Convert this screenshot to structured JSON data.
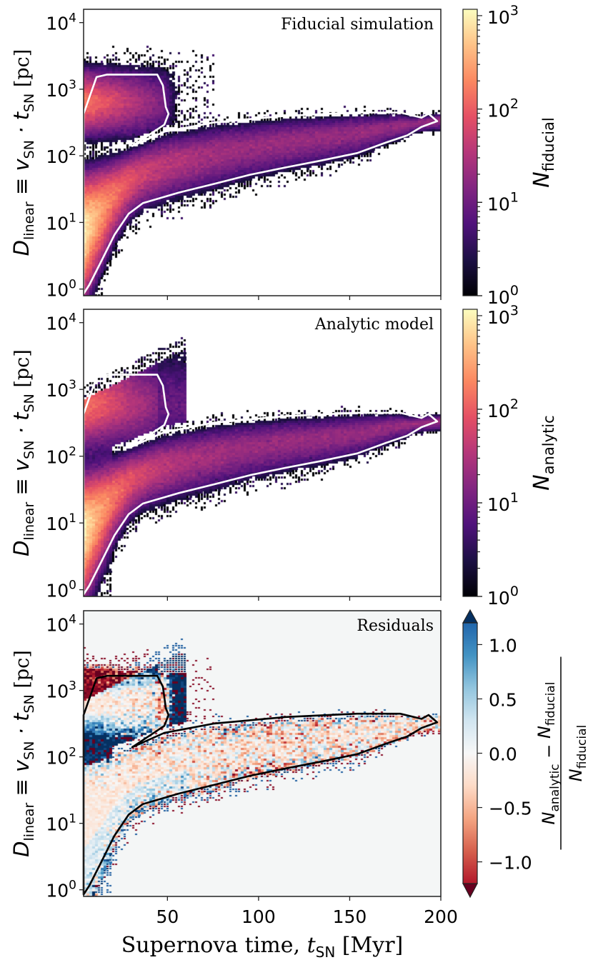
{
  "chart_data": [
    {
      "type": "heatmap",
      "title": "Fiducial simulation",
      "xscale": "linear",
      "xlim": [
        4,
        200
      ],
      "xticks": [
        50,
        100,
        150,
        200
      ],
      "yscale": "log",
      "ylim": [
        0.8,
        15850
      ],
      "yticks": [
        1,
        10,
        100,
        1000,
        10000
      ],
      "colormap": "magma",
      "colorbar": {
        "label_main": "N",
        "label_sub": "fiducial",
        "scale": "log",
        "range": [
          1,
          1170
        ],
        "ticks": [
          1,
          10,
          100,
          1000
        ]
      },
      "contour_color": "#ffffff",
      "contour": [
        [
          4,
          427
        ],
        [
          11.1,
          1520
        ],
        [
          16.9,
          1660
        ],
        [
          44.4,
          1660
        ],
        [
          47.5,
          1140
        ],
        [
          49.1,
          540
        ],
        [
          50.6,
          427
        ],
        [
          48.3,
          293
        ],
        [
          30.7,
          140
        ],
        [
          48.3,
          230
        ],
        [
          75.7,
          318
        ],
        [
          114.9,
          398
        ],
        [
          154.1,
          447
        ],
        [
          177.7,
          447
        ],
        [
          189.4,
          374
        ],
        [
          193.3,
          427
        ],
        [
          198,
          332
        ],
        [
          189.4,
          272
        ],
        [
          181.6,
          203
        ],
        [
          169.8,
          158
        ],
        [
          154.1,
          110
        ],
        [
          134.5,
          85
        ],
        [
          114.9,
          67
        ],
        [
          95.3,
          52
        ],
        [
          75.7,
          38
        ],
        [
          56.1,
          28
        ],
        [
          36.5,
          19.5
        ],
        [
          28.7,
          13.5
        ],
        [
          20.9,
          6.5
        ],
        [
          13,
          2.4
        ],
        [
          7.1,
          1.15
        ],
        [
          4,
          0.85
        ]
      ]
    },
    {
      "type": "heatmap",
      "title": "Analytic model",
      "xscale": "linear",
      "xlim": [
        4,
        200
      ],
      "xticks": [
        50,
        100,
        150,
        200
      ],
      "yscale": "log",
      "ylim": [
        0.8,
        15850
      ],
      "yticks": [
        1,
        10,
        100,
        1000,
        10000
      ],
      "colormap": "magma",
      "colorbar": {
        "label_main": "N",
        "label_sub": "analytic",
        "scale": "log",
        "range": [
          1,
          1170
        ],
        "ticks": [
          1,
          10,
          100,
          1000
        ]
      },
      "contour_color": "#ffffff",
      "contour": [
        [
          4,
          427
        ],
        [
          11.1,
          1520
        ],
        [
          16.9,
          1660
        ],
        [
          44.4,
          1660
        ],
        [
          47.5,
          1140
        ],
        [
          49.1,
          540
        ],
        [
          50.6,
          427
        ],
        [
          48.3,
          293
        ],
        [
          30.7,
          140
        ],
        [
          48.3,
          230
        ],
        [
          75.7,
          318
        ],
        [
          114.9,
          398
        ],
        [
          154.1,
          447
        ],
        [
          177.7,
          447
        ],
        [
          189.4,
          374
        ],
        [
          193.3,
          427
        ],
        [
          198,
          332
        ],
        [
          189.4,
          272
        ],
        [
          181.6,
          203
        ],
        [
          169.8,
          158
        ],
        [
          154.1,
          110
        ],
        [
          134.5,
          85
        ],
        [
          114.9,
          67
        ],
        [
          95.3,
          52
        ],
        [
          75.7,
          38
        ],
        [
          56.1,
          28
        ],
        [
          36.5,
          19.5
        ],
        [
          28.7,
          13.5
        ],
        [
          20.9,
          6.5
        ],
        [
          13,
          2.4
        ],
        [
          7.1,
          1.15
        ],
        [
          4,
          0.85
        ]
      ]
    },
    {
      "type": "heatmap",
      "title": "Residuals",
      "xscale": "linear",
      "xlim": [
        4,
        200
      ],
      "xticks": [
        50,
        100,
        150,
        200
      ],
      "yscale": "log",
      "ylim": [
        0.8,
        15850
      ],
      "yticks": [
        1,
        10,
        100,
        1000,
        10000
      ],
      "colormap": "RdBu",
      "colorbar": {
        "num_main": "N",
        "num_sub1": "analytic",
        "minus": " − ",
        "num_sub2": "fiducial",
        "den_main": "N",
        "den_sub": "fiducial",
        "scale": "linear",
        "range": [
          -1.2,
          1.2
        ],
        "extend": "both",
        "ticks": [
          -1.0,
          -0.5,
          0.0,
          0.5,
          1.0
        ],
        "tick_labels": [
          "−1.0",
          "−0.5",
          "0.0",
          "0.5",
          "1.0"
        ]
      },
      "background": "#f4f6f6",
      "contour_color": "#000000",
      "contour": [
        [
          4,
          427
        ],
        [
          11.1,
          1520
        ],
        [
          16.9,
          1660
        ],
        [
          44.4,
          1660
        ],
        [
          47.5,
          1140
        ],
        [
          49.1,
          540
        ],
        [
          50.6,
          427
        ],
        [
          48.3,
          293
        ],
        [
          30.7,
          140
        ],
        [
          48.3,
          230
        ],
        [
          75.7,
          318
        ],
        [
          114.9,
          398
        ],
        [
          154.1,
          447
        ],
        [
          177.7,
          447
        ],
        [
          189.4,
          374
        ],
        [
          193.3,
          427
        ],
        [
          198,
          332
        ],
        [
          189.4,
          272
        ],
        [
          181.6,
          203
        ],
        [
          169.8,
          158
        ],
        [
          154.1,
          110
        ],
        [
          134.5,
          85
        ],
        [
          114.9,
          67
        ],
        [
          95.3,
          52
        ],
        [
          75.7,
          38
        ],
        [
          56.1,
          28
        ],
        [
          36.5,
          19.5
        ],
        [
          28.7,
          13.5
        ],
        [
          20.9,
          6.5
        ],
        [
          13,
          2.4
        ],
        [
          7.1,
          1.15
        ],
        [
          4,
          0.85
        ]
      ]
    }
  ],
  "axes": {
    "ytick_base": "10",
    "ylabel": {
      "D": "D",
      "D_sub": "linear",
      "mid": " ≡ v",
      "v_sub": "SN",
      "dot": " · t",
      "t_sub": "SN",
      "unit": " [pc]"
    },
    "xlabel": {
      "text": "Supernova time, ",
      "t": "t",
      "t_sub": "SN",
      "unit": " [Myr]"
    }
  },
  "colors": {
    "magma": [
      "#000004",
      "#1c1044",
      "#4f127b",
      "#812581",
      "#b5367a",
      "#e55064",
      "#fb8861",
      "#fec287",
      "#fcfdbf"
    ],
    "RdBu": [
      "#67001f",
      "#b2182b",
      "#d6604d",
      "#f4a582",
      "#fddbc7",
      "#f7f7f7",
      "#d1e5f0",
      "#92c5de",
      "#4393c3",
      "#2166ac",
      "#053061"
    ]
  }
}
